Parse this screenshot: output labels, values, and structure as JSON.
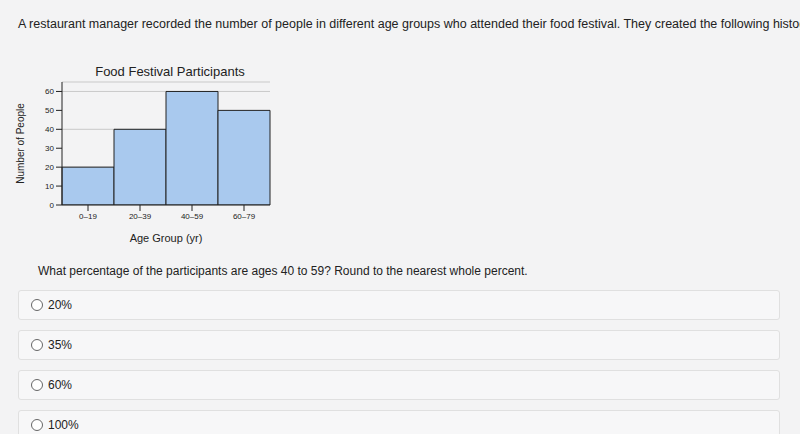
{
  "intro": "A restaurant manager recorded the number of people in different age groups who attended their food festival. They created the following histogram:",
  "chart_data": {
    "type": "bar",
    "title": "Food Festival Participants",
    "x_label": "Age Group (yr)",
    "y_label": "Number of People",
    "categories": [
      "0–19",
      "20–39",
      "40–59",
      "60–79"
    ],
    "values": [
      20,
      40,
      60,
      50
    ],
    "color": "#a9c9ee",
    "ylim": [
      0,
      65
    ],
    "yticks": [
      0,
      10,
      20,
      30,
      40,
      50,
      60
    ],
    "grid": true
  },
  "question": "What percentage of the participants are ages 40 to 59? Round to the nearest whole percent.",
  "options": [
    "20%",
    "35%",
    "60%",
    "100%"
  ]
}
